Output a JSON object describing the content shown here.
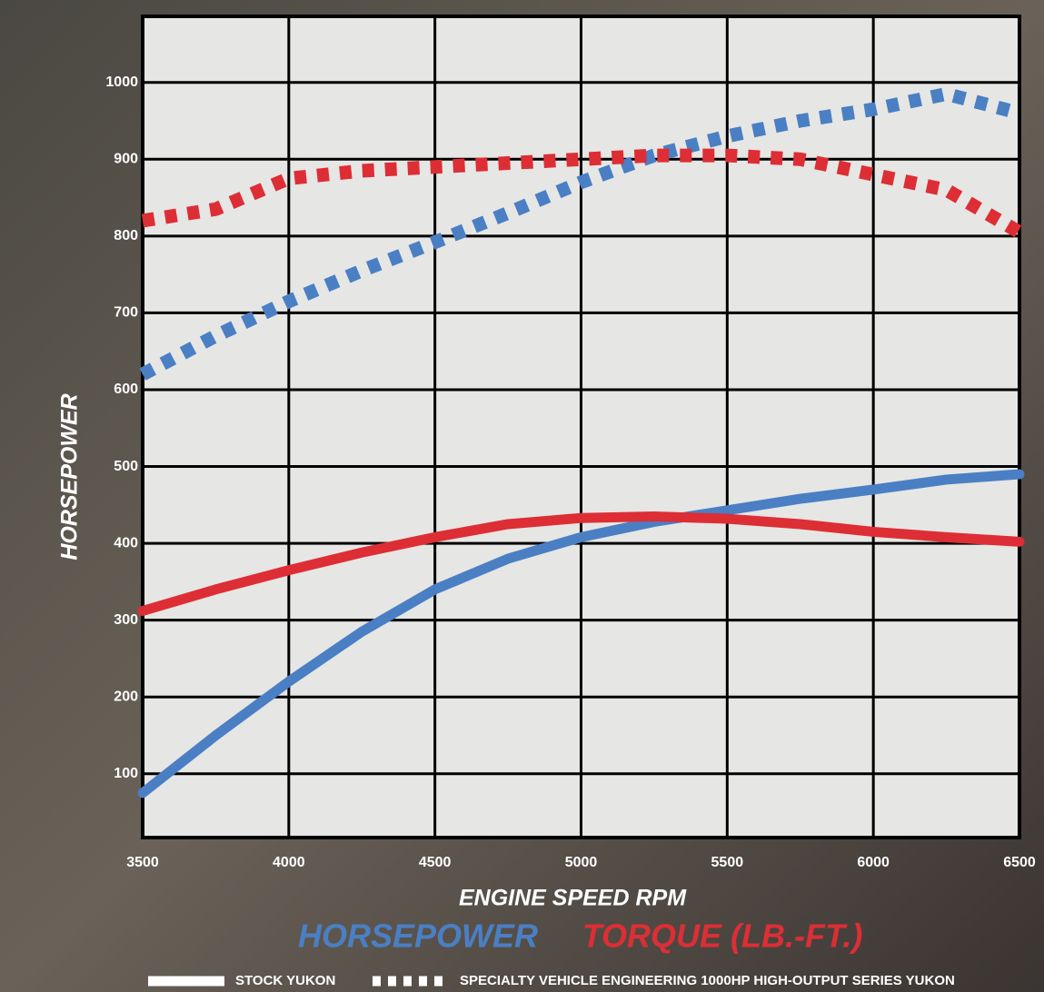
{
  "chart_data": {
    "type": "line",
    "x_label": "ENGINE SPEED RPM",
    "y_label": "HORSEPOWER",
    "x": [
      3500,
      3750,
      4000,
      4250,
      4500,
      4750,
      5000,
      5250,
      5500,
      5750,
      6000,
      6250,
      6500
    ],
    "series": [
      {
        "measure": 0,
        "style": 0,
        "color": "#4a7fc4",
        "values": [
          75,
          150,
          220,
          285,
          340,
          380,
          408,
          428,
          443,
          458,
          470,
          483,
          490
        ]
      },
      {
        "measure": 1,
        "style": 0,
        "color": "#dd2e35",
        "values": [
          312,
          340,
          365,
          388,
          408,
          425,
          433,
          435,
          432,
          425,
          415,
          408,
          402
        ]
      },
      {
        "measure": 0,
        "style": 1,
        "color": "#4a7fc4",
        "values": [
          620,
          670,
          715,
          755,
          792,
          830,
          870,
          905,
          930,
          950,
          965,
          985,
          960
        ]
      },
      {
        "measure": 1,
        "style": 1,
        "color": "#dd2e35",
        "values": [
          820,
          835,
          875,
          885,
          890,
          895,
          900,
          905,
          905,
          900,
          880,
          860,
          805
        ]
      }
    ],
    "legend": {
      "measures": [
        {
          "label": "HORSEPOWER",
          "color": "#4a7fc4"
        },
        {
          "label": "TORQUE (LB.-FT.)",
          "color": "#dd2e35"
        }
      ],
      "styles": [
        {
          "label": "STOCK YUKON",
          "dashed": false
        },
        {
          "label": "SPECIALTY VEHICLE ENGINEERING 1000HP HIGH-OUTPUT SERIES YUKON",
          "dashed": true
        }
      ]
    },
    "xlim": [
      3500,
      6500
    ],
    "xticks": [
      3500,
      4000,
      4500,
      5000,
      5500,
      6000,
      6500
    ],
    "ylim": [
      17,
      1086
    ],
    "yticks": [
      100,
      200,
      300,
      400,
      500,
      600,
      700,
      800,
      900,
      1000
    ],
    "grid": true
  }
}
